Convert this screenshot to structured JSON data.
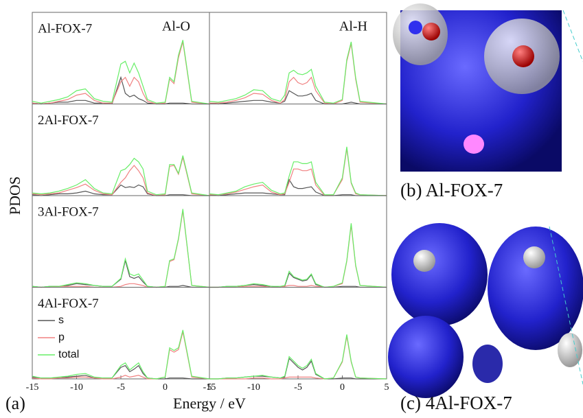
{
  "figure": {
    "panel_label": "(a)",
    "y_label": "PDOS",
    "x_label": "Energy / eV",
    "images": [
      {
        "caption": "(b) Al-FOX-7"
      },
      {
        "caption": "(c) 4Al-FOX-7"
      }
    ]
  },
  "chart_data": [
    {
      "type": "line",
      "title": "Al-FOX-7",
      "subtitle": "Al-O",
      "xlim": [
        -15,
        5
      ],
      "ylim": [
        0,
        10
      ],
      "x": [
        -15,
        -14,
        -13,
        -12,
        -11,
        -10,
        -9,
        -8,
        -7,
        -6,
        -5,
        -4.5,
        -4,
        -3.5,
        -3,
        -2.5,
        -2,
        -1,
        0,
        0.5,
        1,
        1.5,
        2,
        3,
        5
      ],
      "series": [
        {
          "color": "#555555",
          "values": [
            0.1,
            0,
            0.1,
            0.2,
            0.2,
            0.4,
            0.4,
            0.1,
            0.1,
            0,
            3.0,
            1.2,
            0.8,
            1.0,
            0.6,
            0.4,
            0.1,
            0,
            0,
            0.1,
            0.1,
            0.1,
            0.1,
            0,
            0
          ]
        },
        {
          "color": "#f08080",
          "values": [
            0.1,
            0,
            0.1,
            0.3,
            0.5,
            1.0,
            1.2,
            0.4,
            0.1,
            0.1,
            2.5,
            3.0,
            2.0,
            3.0,
            2.5,
            1.2,
            0.3,
            0,
            0.1,
            2.8,
            2.3,
            5.2,
            7.0,
            0.2,
            0
          ]
        },
        {
          "color": "#66ee66",
          "values": [
            0.3,
            0.1,
            0.3,
            0.5,
            0.8,
            1.5,
            1.7,
            0.6,
            0.3,
            0.2,
            4.5,
            4.8,
            3.5,
            4.6,
            3.5,
            2.0,
            0.5,
            0.1,
            0.2,
            3.0,
            2.5,
            5.5,
            7.2,
            0.3,
            0
          ]
        }
      ]
    },
    {
      "type": "line",
      "title": "2Al-FOX-7",
      "xlim": [
        -15,
        5
      ],
      "ylim": [
        0,
        10
      ],
      "x": [
        -15,
        -14,
        -13,
        -12,
        -11,
        -10,
        -9,
        -8,
        -7,
        -6,
        -5,
        -4.5,
        -4,
        -3.5,
        -3,
        -2.5,
        -2,
        -1,
        0,
        0.5,
        1,
        1.5,
        2,
        3,
        5
      ],
      "series": [
        {
          "color": "#555555",
          "values": [
            0.1,
            0,
            0.1,
            0.2,
            0.2,
            0.3,
            0.5,
            0.2,
            0.1,
            0.1,
            1.2,
            0.9,
            1.0,
            0.9,
            1.2,
            1.0,
            0.2,
            0,
            0,
            0.1,
            0.1,
            0.1,
            0.1,
            0,
            0
          ]
        },
        {
          "color": "#f08080",
          "values": [
            0.2,
            0.1,
            0.2,
            0.3,
            0.6,
            0.9,
            1.3,
            0.6,
            0.2,
            0.1,
            1.5,
            2.0,
            2.8,
            3.4,
            2.8,
            2.0,
            0.3,
            0,
            0.1,
            3.3,
            3.4,
            2.4,
            4.3,
            0.2,
            0
          ]
        },
        {
          "color": "#66ee66",
          "values": [
            0.3,
            0.2,
            0.3,
            0.5,
            0.8,
            1.2,
            1.8,
            0.8,
            0.3,
            0.2,
            2.8,
            3.0,
            3.5,
            4.2,
            3.8,
            3.0,
            0.5,
            0.1,
            0.2,
            3.5,
            3.5,
            2.5,
            4.5,
            0.3,
            0
          ]
        }
      ]
    },
    {
      "type": "line",
      "title": "3Al-FOX-7",
      "xlim": [
        -15,
        5
      ],
      "ylim": [
        0,
        10
      ],
      "x": [
        -15,
        -14,
        -13,
        -12,
        -11,
        -10,
        -9,
        -8,
        -7,
        -6,
        -5,
        -4.5,
        -4,
        -3.5,
        -3,
        -2.5,
        -2,
        -1,
        0,
        0.5,
        1,
        1.5,
        2,
        3,
        5
      ],
      "series": [
        {
          "color": "#555555",
          "values": [
            0.1,
            0,
            0.1,
            0.1,
            0.2,
            0.4,
            0.3,
            0.2,
            0.1,
            0.1,
            0.9,
            3.0,
            1.2,
            1.0,
            1.2,
            0.6,
            0.1,
            0,
            0,
            0.1,
            0.1,
            0.1,
            0.2,
            0,
            0
          ]
        },
        {
          "color": "#f08080",
          "values": [
            0,
            0,
            0,
            0.1,
            0.1,
            0.1,
            0.1,
            0,
            0,
            0,
            0.1,
            0.3,
            0.4,
            0.4,
            0.3,
            0.2,
            0,
            0,
            0.1,
            2.9,
            3.1,
            5.4,
            8.6,
            0.2,
            0
          ]
        },
        {
          "color": "#66ee66",
          "values": [
            0.1,
            0,
            0.1,
            0.1,
            0.3,
            0.5,
            0.4,
            0.2,
            0.1,
            0.1,
            1.0,
            3.2,
            1.5,
            1.3,
            1.5,
            0.8,
            0.1,
            0,
            0.1,
            3.0,
            3.2,
            5.5,
            8.8,
            0.2,
            0
          ]
        }
      ]
    },
    {
      "type": "line",
      "title": "4Al-FOX-7",
      "xlim": [
        -15,
        5
      ],
      "ylim": [
        0,
        10
      ],
      "xticks": [
        -15,
        -10,
        -5,
        0,
        5
      ],
      "legend": "lower left",
      "x": [
        -15,
        -14,
        -13,
        -12,
        -11,
        -10,
        -9,
        -8,
        -7,
        -6,
        -5,
        -4.5,
        -4,
        -3.5,
        -3,
        -2.5,
        -2,
        -1,
        0,
        0.5,
        1,
        1.5,
        2,
        3,
        5
      ],
      "series": [
        {
          "name": "s",
          "color": "#555555",
          "values": [
            0.2,
            0.1,
            0.1,
            0.1,
            0.2,
            0.3,
            0.4,
            0.1,
            0.1,
            0.1,
            1.3,
            1.5,
            0.8,
            1.1,
            1.5,
            0.6,
            0.1,
            0,
            0,
            0.1,
            0.1,
            0.1,
            0.1,
            0,
            0
          ]
        },
        {
          "name": "p",
          "color": "#f08080",
          "values": [
            0.1,
            0,
            0,
            0.1,
            0.1,
            0.2,
            0.2,
            0.1,
            0,
            0,
            0.2,
            0.4,
            0.2,
            0.3,
            0.4,
            0.2,
            0,
            0,
            0.2,
            3.3,
            3.0,
            3.3,
            5.3,
            0.2,
            0
          ]
        },
        {
          "name": "total",
          "color": "#66ee66",
          "values": [
            0.3,
            0.1,
            0.1,
            0.2,
            0.3,
            0.5,
            0.6,
            0.2,
            0.1,
            0.1,
            1.5,
            1.8,
            1.0,
            1.4,
            1.8,
            0.8,
            0.1,
            0,
            0.2,
            3.5,
            3.2,
            3.5,
            5.5,
            0.3,
            0
          ]
        }
      ]
    },
    {
      "type": "line",
      "subtitle": "Al-H",
      "xlim": [
        -15,
        5
      ],
      "ylim": [
        0,
        10
      ],
      "x": [
        -15,
        -14,
        -13,
        -12,
        -11,
        -10,
        -9,
        -8,
        -7,
        -6.5,
        -6,
        -5.5,
        -5,
        -4.5,
        -4,
        -3.5,
        -3,
        -2,
        -1,
        0,
        0.5,
        1,
        1.5,
        2,
        5
      ],
      "series": [
        {
          "color": "#555555",
          "values": [
            0.1,
            0,
            0.1,
            0.2,
            0.3,
            0.4,
            0.4,
            0.2,
            0.1,
            0.3,
            1.5,
            1.2,
            0.9,
            0.9,
            1.0,
            1.2,
            0.4,
            0,
            0,
            0,
            0.1,
            0.2,
            0.1,
            0,
            0
          ]
        },
        {
          "color": "#f08080",
          "values": [
            0.1,
            0.1,
            0.2,
            0.4,
            0.7,
            1.2,
            1.1,
            0.4,
            0.1,
            0.5,
            2.5,
            3.0,
            2.4,
            2.2,
            2.4,
            3.0,
            1.5,
            0.1,
            0,
            0.4,
            4.8,
            6.8,
            2.8,
            0.2,
            0
          ]
        },
        {
          "color": "#66ee66",
          "values": [
            0.3,
            0.2,
            0.4,
            0.6,
            1.0,
            1.6,
            1.5,
            0.6,
            0.3,
            1.0,
            3.5,
            3.8,
            3.4,
            3.3,
            3.5,
            3.9,
            2.0,
            0.2,
            0.1,
            0.5,
            5.0,
            7.0,
            3.0,
            0.3,
            0
          ]
        }
      ]
    },
    {
      "type": "line",
      "xlim": [
        -15,
        5
      ],
      "ylim": [
        0,
        10
      ],
      "x": [
        -15,
        -14,
        -13,
        -12,
        -11,
        -10,
        -9,
        -8,
        -7,
        -6.5,
        -6,
        -5.5,
        -5,
        -4.5,
        -4,
        -3.5,
        -3,
        -2,
        -1,
        0,
        0.5,
        1,
        1.5,
        2,
        5
      ],
      "series": [
        {
          "color": "#555555",
          "values": [
            0.1,
            0,
            0.1,
            0.2,
            0.3,
            0.3,
            0.3,
            0.2,
            0.1,
            0.1,
            1.8,
            1.0,
            0.8,
            0.8,
            0.9,
            1.0,
            0.4,
            0,
            0,
            0.1,
            0.1,
            0.1,
            0,
            0,
            0
          ]
        },
        {
          "color": "#f08080",
          "values": [
            0.1,
            0.1,
            0.2,
            0.4,
            0.7,
            1.0,
            1.2,
            0.4,
            0.1,
            0.2,
            1.5,
            3.0,
            3.0,
            2.8,
            2.8,
            3.0,
            1.2,
            0,
            0.1,
            1.8,
            5.3,
            1.4,
            0.2,
            0.1,
            0
          ]
        },
        {
          "color": "#66ee66",
          "values": [
            0.2,
            0.1,
            0.3,
            0.5,
            1.0,
            1.3,
            1.5,
            0.6,
            0.2,
            0.3,
            2.2,
            3.8,
            3.8,
            3.6,
            3.6,
            3.8,
            1.5,
            0.1,
            0.1,
            2.0,
            5.5,
            1.5,
            0.3,
            0.1,
            0
          ]
        }
      ]
    },
    {
      "type": "line",
      "xlim": [
        -15,
        5
      ],
      "ylim": [
        0,
        10
      ],
      "x": [
        -15,
        -14,
        -13,
        -12,
        -11,
        -10,
        -9,
        -8,
        -7,
        -6.5,
        -6,
        -5.5,
        -5,
        -4.5,
        -4,
        -3.5,
        -3,
        -2,
        -1,
        0,
        0.5,
        1,
        1.5,
        2,
        5
      ],
      "series": [
        {
          "color": "#555555",
          "values": [
            0,
            0,
            0.1,
            0.1,
            0.2,
            0.3,
            0.2,
            0.1,
            0,
            0.1,
            1.6,
            1.1,
            0.9,
            0.7,
            0.8,
            1.4,
            0.3,
            0,
            0,
            0.1,
            0.1,
            0.1,
            0.1,
            0,
            0
          ]
        },
        {
          "color": "#f08080",
          "values": [
            0,
            0,
            0,
            0,
            0.1,
            0.1,
            0.1,
            0,
            0,
            0.1,
            0.2,
            0.2,
            0.1,
            0.1,
            0.1,
            0.2,
            0.1,
            0,
            0.1,
            0.4,
            2.9,
            7.0,
            2.4,
            0.2,
            0
          ]
        },
        {
          "color": "#66ee66",
          "values": [
            0,
            0,
            0.1,
            0.1,
            0.2,
            0.4,
            0.3,
            0.1,
            0.1,
            0.2,
            1.8,
            1.2,
            1.0,
            0.8,
            0.9,
            1.5,
            0.4,
            0,
            0.1,
            0.5,
            3.0,
            7.2,
            2.5,
            0.2,
            0
          ]
        }
      ]
    },
    {
      "type": "line",
      "xlim": [
        -15,
        5
      ],
      "ylim": [
        0,
        10
      ],
      "xticks": [
        -15,
        -10,
        -5,
        0,
        5
      ],
      "x": [
        -15,
        -14,
        -13,
        -12,
        -11,
        -10,
        -9,
        -8,
        -7,
        -6.5,
        -6,
        -5.5,
        -5,
        -4.5,
        -4,
        -3.5,
        -3,
        -2,
        -1,
        0,
        0.5,
        1,
        1.5,
        2,
        5
      ],
      "series": [
        {
          "color": "#555555",
          "values": [
            0,
            0,
            0.1,
            0.1,
            0.2,
            0.3,
            0.3,
            0.2,
            0.1,
            0.2,
            2.3,
            1.8,
            1.3,
            1.0,
            1.3,
            2.0,
            0.5,
            0,
            0,
            0.1,
            0.1,
            0.1,
            0,
            0,
            0
          ]
        },
        {
          "color": "#f08080",
          "values": [
            0,
            0,
            0,
            0,
            0,
            0.1,
            0.1,
            0,
            0,
            0.1,
            0.2,
            0.2,
            0.2,
            0.2,
            0.2,
            0.2,
            0.1,
            0,
            0.1,
            1.9,
            4.8,
            1.9,
            0.2,
            0.1,
            0
          ]
        },
        {
          "color": "#66ee66",
          "values": [
            0,
            0,
            0.1,
            0.1,
            0.2,
            0.3,
            0.4,
            0.2,
            0.1,
            0.3,
            2.5,
            2.0,
            1.5,
            1.2,
            1.5,
            2.2,
            0.6,
            0,
            0.1,
            2.0,
            5.0,
            2.0,
            0.2,
            0.1,
            0
          ]
        }
      ]
    }
  ]
}
